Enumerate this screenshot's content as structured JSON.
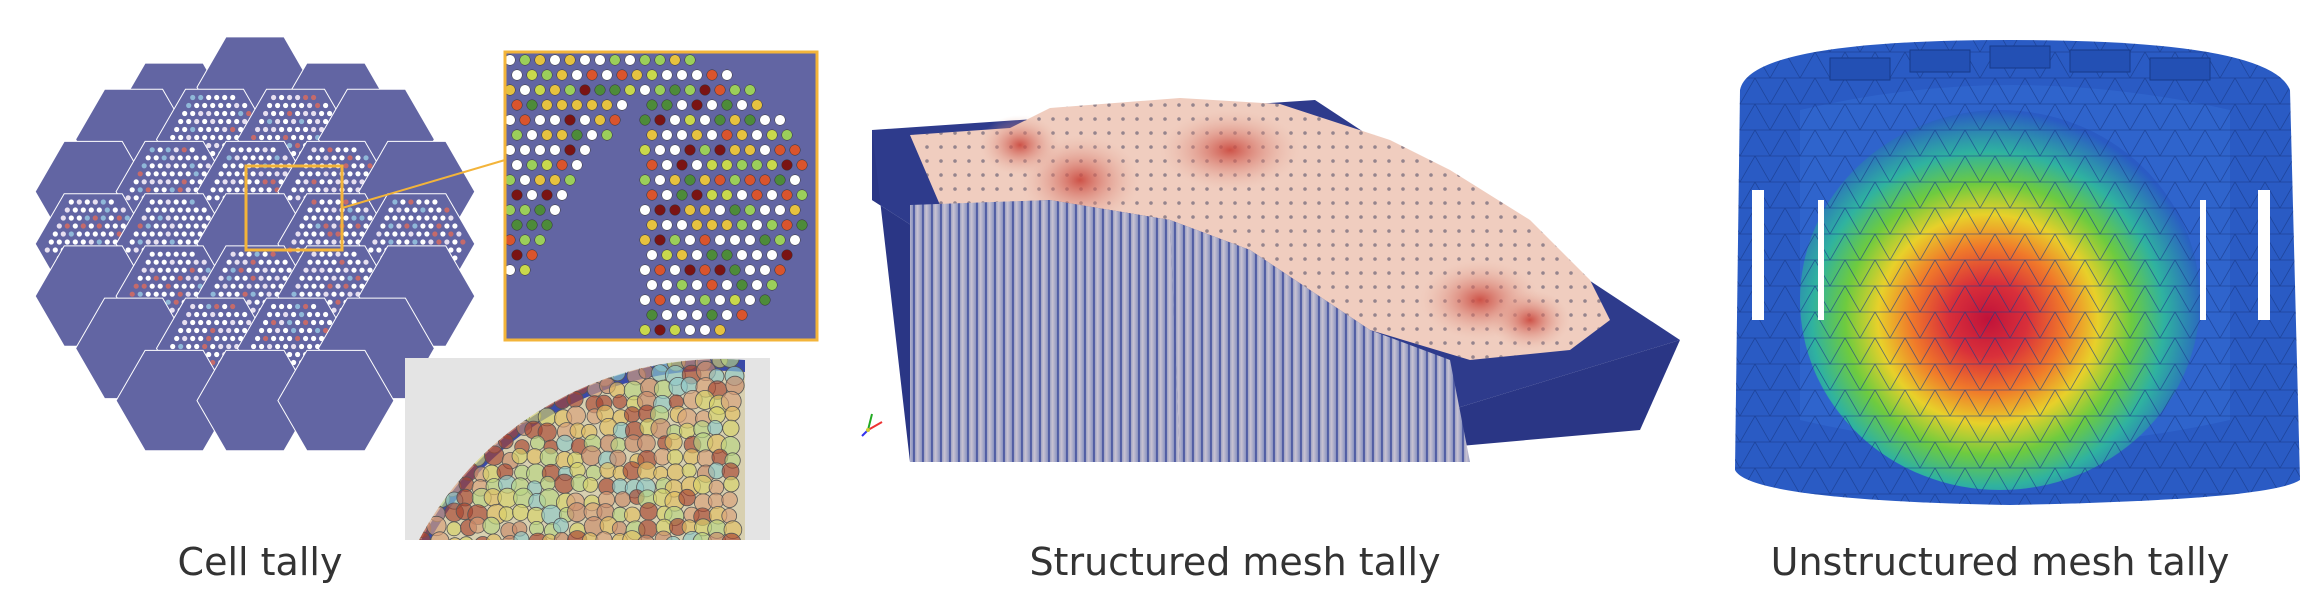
{
  "panels": [
    {
      "caption": "Cell tally"
    },
    {
      "caption": "Structured mesh tally"
    },
    {
      "caption": "Unstructured mesh tally"
    }
  ],
  "colors": {
    "assembly": "#6265a3",
    "zoom_frame": "#f3b43a",
    "mesh_box": "#2e3b8c",
    "unstructured_base": "#2a5bc4"
  },
  "icons": [
    "axes-triad-icon"
  ]
}
